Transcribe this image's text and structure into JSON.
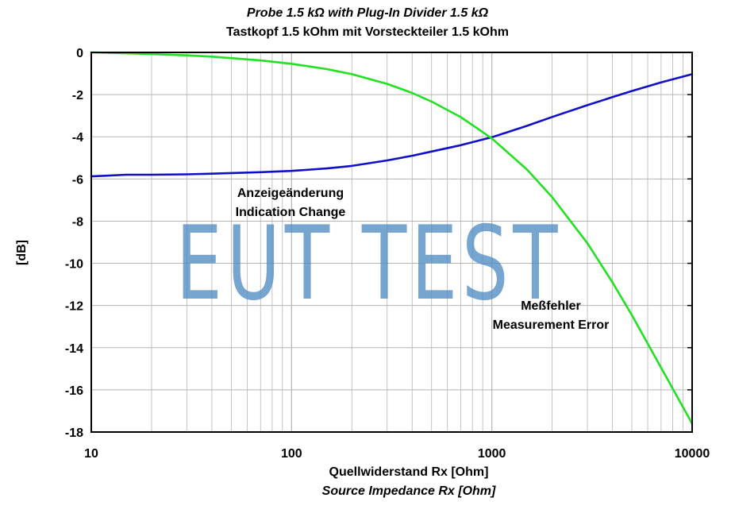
{
  "header": {
    "title_en": "Probe 1.5 kΩ with Plug-In Divider 1.5 kΩ",
    "title_de": "Tastkopf 1.5 kOhm mit Vorsteckteiler 1.5 kOhm"
  },
  "axes": {
    "xlabel_de": "Quellwiderstand Rx [Ohm]",
    "xlabel_en": "Source Impedance Rx [Ohm]",
    "ylabel": "[dB]"
  },
  "annotations": {
    "indication_de": "Anzeigeänderung",
    "indication_en": "Indication Change",
    "error_de": "Meßfehler",
    "error_en": "Measurement Error"
  },
  "watermark": "EUT TEST",
  "colors": {
    "indication_change": "#1010c8",
    "measurement_error": "#22e022"
  },
  "chart_data": {
    "type": "line",
    "title": "Probe 1.5 kΩ with Plug-In Divider 1.5 kΩ / Tastkopf 1.5 kOhm mit Vorsteckteiler 1.5 kOhm",
    "xlabel": "Quellwiderstand Rx [Ohm] / Source Impedance Rx [Ohm]",
    "ylabel": "[dB]",
    "x_scale": "log",
    "xlim": [
      10,
      10000
    ],
    "ylim": [
      -18,
      0
    ],
    "x_ticks": [
      10,
      100,
      1000,
      10000
    ],
    "x_tick_labels": [
      "10",
      "100",
      "1000",
      "10000"
    ],
    "y_ticks": [
      0,
      -2,
      -4,
      -6,
      -8,
      -10,
      -12,
      -14,
      -16,
      -18
    ],
    "y_tick_labels": [
      "0",
      "-2",
      "-4",
      "-6",
      "-8",
      "-10",
      "-12",
      "-14",
      "-16",
      "-18"
    ],
    "grid": true,
    "series": [
      {
        "name": "Indication Change",
        "x": [
          10,
          15,
          20,
          30,
          40,
          50,
          70,
          100,
          150,
          200,
          300,
          400,
          500,
          700,
          1000,
          1500,
          2000,
          3000,
          4000,
          5000,
          7000,
          10000
        ],
        "y": [
          -5.88,
          -5.8,
          -5.8,
          -5.78,
          -5.75,
          -5.72,
          -5.68,
          -5.62,
          -5.5,
          -5.38,
          -5.12,
          -4.9,
          -4.7,
          -4.4,
          -4.02,
          -3.48,
          -3.06,
          -2.5,
          -2.12,
          -1.83,
          -1.42,
          -1.03
        ]
      },
      {
        "name": "Measurement Error",
        "x": [
          10,
          15,
          20,
          30,
          40,
          50,
          70,
          100,
          150,
          200,
          300,
          400,
          500,
          700,
          1000,
          1500,
          2000,
          3000,
          4000,
          5000,
          7000,
          10000
        ],
        "y": [
          0,
          -0.04,
          -0.08,
          -0.14,
          -0.2,
          -0.27,
          -0.38,
          -0.54,
          -0.79,
          -1.03,
          -1.49,
          -1.92,
          -2.33,
          -3.07,
          -4.08,
          -5.56,
          -6.86,
          -9.05,
          -10.9,
          -12.45,
          -14.95,
          -17.6
        ]
      }
    ]
  }
}
